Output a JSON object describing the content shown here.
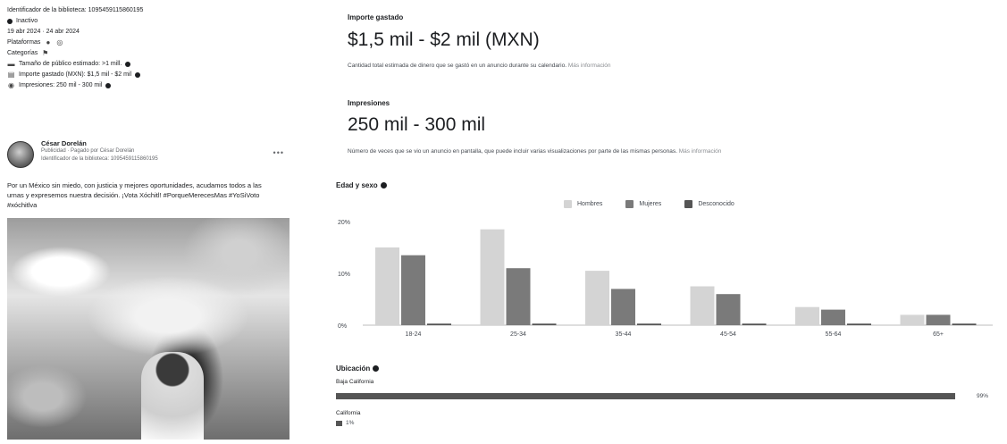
{
  "left_panel": {
    "library_id": "Identificador de la biblioteca: 1095459115860195",
    "status": "Inactivo",
    "date_range": "19 abr 2024 · 24 abr 2024",
    "platforms_label": "Plataformas",
    "categories_label": "Categorías",
    "audience_size": "Tamaño de público estimado: >1 mill.",
    "amount_spent": "Importe gastado (MXN): $1,5 mil - $2 mil",
    "impressions": "Impresiones: 250 mil - 300 mil",
    "post": {
      "author": "César Dorelán",
      "subline": "Publicidad · Pagado por César Dorelán",
      "library_id": "Identificador de la biblioteca: 1095459115860195",
      "more": "•••",
      "text": "Por un México sin miedo, con justicia y mejores oportunidades, acudamos todos a las urnas y expresemos nuestra decisión. ¡Vota Xóchitl! #PorqueMerecesMas #YoSiVoto #xóchitlva"
    }
  },
  "spend": {
    "label": "Importe gastado",
    "value": "$1,5 mil - $2 mil (MXN)",
    "description": "Cantidad total estimada de dinero que se gastó en un anuncio durante su calendario.",
    "more": "Más información"
  },
  "impressions": {
    "label": "Impresiones",
    "value": "250 mil - 300 mil",
    "description": "Número de veces que se vio un anuncio en pantalla, que puede incluir varias visualizaciones por parte de las mismas personas.",
    "more": "Más información"
  },
  "age_gender": {
    "label": "Edad y sexo",
    "legend": [
      "Hombres",
      "Mujeres",
      "Desconocido"
    ]
  },
  "colors": {
    "men": "#d4d4d4",
    "women": "#7a7a7a",
    "unknown": "#555555",
    "location_bar": "#555555"
  },
  "chart_data": {
    "type": "bar",
    "categories": [
      "18-24",
      "25-34",
      "35-44",
      "45-54",
      "55-64",
      "65+"
    ],
    "series": [
      {
        "name": "Hombres",
        "values": [
          15,
          18.5,
          10.5,
          7.5,
          3.5,
          2
        ]
      },
      {
        "name": "Mujeres",
        "values": [
          13.5,
          11,
          7,
          6,
          3,
          2
        ]
      },
      {
        "name": "Desconocido",
        "values": [
          0.3,
          0.3,
          0.3,
          0.3,
          0.3,
          0.3
        ]
      }
    ],
    "yticks": [
      "20%",
      "10%",
      "0%"
    ],
    "ylim": [
      0,
      20
    ]
  },
  "location": {
    "label": "Ubicación",
    "items": [
      {
        "name": "Baja California",
        "value": 99,
        "pct": "99%"
      },
      {
        "name": "California",
        "value": 1,
        "pct": "1%"
      }
    ]
  }
}
